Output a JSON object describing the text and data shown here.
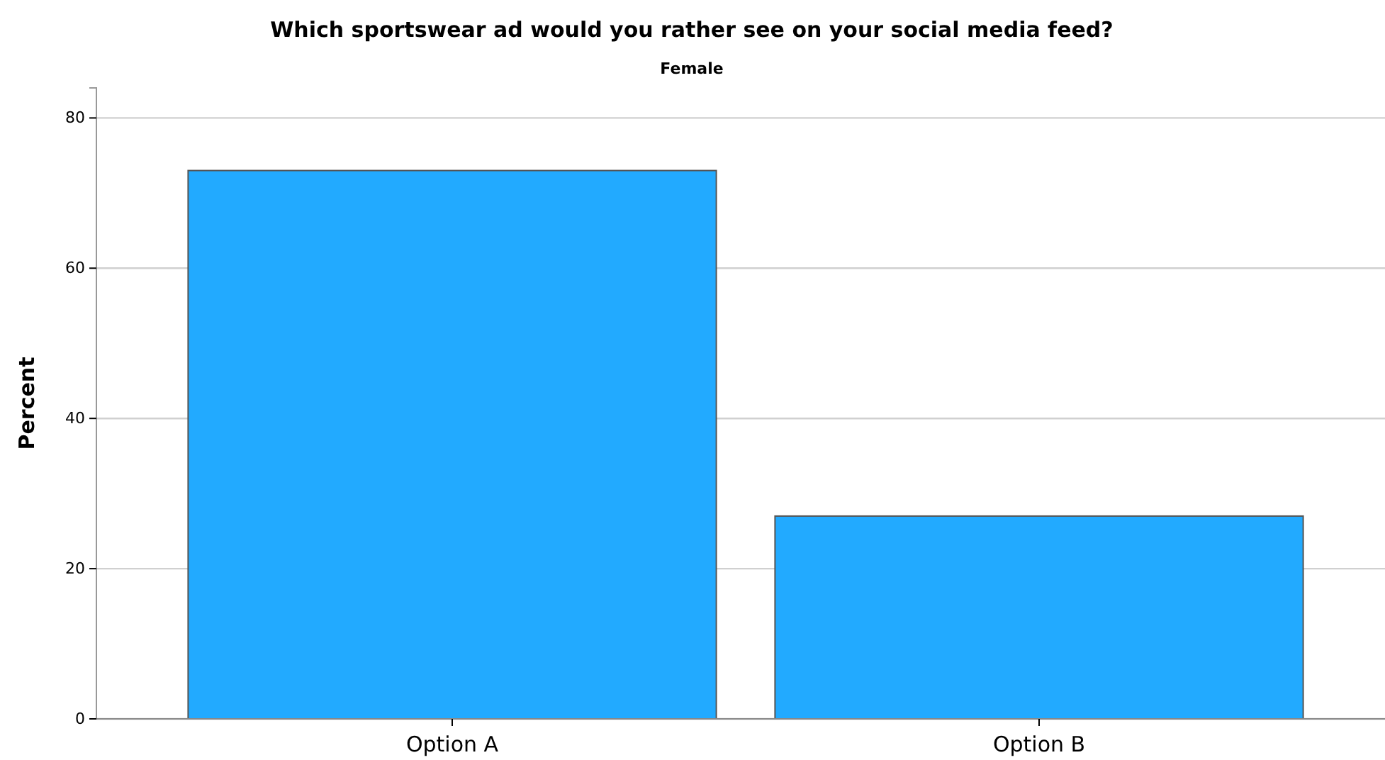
{
  "chart_data": {
    "type": "bar",
    "title": "Which sportswear ad would you rather see on your social media feed?",
    "subtitle": "Female",
    "ylabel": "Percent",
    "categories": [
      "Option A",
      "Option B"
    ],
    "values": [
      73,
      27
    ],
    "color": "#22aaff",
    "ylim": [
      0,
      84
    ],
    "yticks": [
      0,
      20,
      40,
      60,
      80
    ],
    "grid": "y"
  }
}
